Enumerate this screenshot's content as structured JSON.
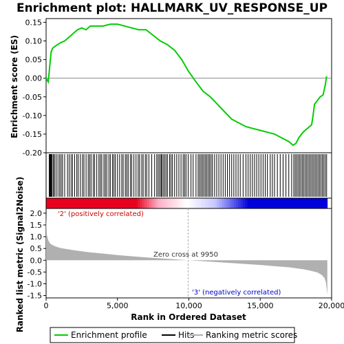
{
  "chart_data": {
    "type": "line",
    "title": "Enrichment plot: HALLMARK_UV_RESPONSE_UP",
    "xlabel": "Rank in Ordered Dataset",
    "ylabel_top": "Enrichment score (ES)",
    "ylabel_bottom": "Ranked list metric (Signal2Noise)",
    "xlim": [
      0,
      20000
    ],
    "x_ticks": [
      0,
      5000,
      10000,
      15000,
      20000
    ],
    "x_tick_labels": [
      "0",
      "5,000",
      "10,000",
      "15,000",
      "20,000"
    ],
    "es_ylim": [
      -0.2,
      0.16
    ],
    "es_ticks": [
      0.15,
      0.1,
      0.05,
      0.0,
      -0.05,
      -0.1,
      -0.15,
      -0.2
    ],
    "es_tick_labels": [
      "0.15",
      "0.10",
      "0.05",
      "0.00",
      "-0.05",
      "-0.10",
      "-0.15",
      "-0.20"
    ],
    "metric_ylim": [
      -1.6,
      2.2
    ],
    "metric_ticks": [
      2.0,
      1.5,
      1.0,
      0.5,
      0.0,
      -0.5,
      -1.0,
      -1.5
    ],
    "metric_tick_labels": [
      "2.0",
      "1.5",
      "1.0",
      "0.5",
      "0.0",
      "-0.5",
      "-1.0",
      "-1.5"
    ],
    "n_genes": 19700,
    "zero_cross": 9950,
    "zero_cross_label": "Zero cross at 9950",
    "pos_label": "'2' (positively correlated)",
    "neg_label": "'3' (negatively correlated)",
    "es_curve": {
      "x": [
        0,
        150,
        250,
        350,
        450,
        600,
        800,
        1000,
        1300,
        1600,
        1900,
        2200,
        2500,
        2800,
        3100,
        3500,
        4000,
        4500,
        5000,
        5500,
        6000,
        6500,
        7000,
        7500,
        8000,
        8500,
        9000,
        9500,
        9950,
        10500,
        11000,
        11500,
        12000,
        12500,
        13000,
        13500,
        14000,
        14500,
        15000,
        15500,
        16000,
        16500,
        17000,
        17300,
        17500,
        17700,
        18000,
        18300,
        18600,
        18700,
        18800,
        19000,
        19200,
        19400,
        19550,
        19650
      ],
      "y": [
        0.0,
        -0.01,
        0.03,
        0.07,
        0.08,
        0.085,
        0.09,
        0.095,
        0.1,
        0.11,
        0.12,
        0.13,
        0.135,
        0.13,
        0.14,
        0.14,
        0.14,
        0.145,
        0.145,
        0.14,
        0.135,
        0.13,
        0.13,
        0.115,
        0.1,
        0.09,
        0.075,
        0.05,
        0.02,
        -0.01,
        -0.035,
        -0.05,
        -0.07,
        -0.09,
        -0.11,
        -0.12,
        -0.13,
        -0.135,
        -0.14,
        -0.145,
        -0.15,
        -0.16,
        -0.17,
        -0.18,
        -0.175,
        -0.16,
        -0.145,
        -0.135,
        -0.125,
        -0.1,
        -0.07,
        -0.06,
        -0.05,
        -0.045,
        -0.02,
        0.005
      ]
    },
    "metric_curve": {
      "x": [
        0,
        50,
        150,
        300,
        600,
        1000,
        2000,
        3000,
        4000,
        5000,
        6000,
        7000,
        8000,
        9000,
        9950,
        11000,
        12000,
        13000,
        14000,
        15000,
        16000,
        17000,
        17500,
        18000,
        18500,
        19000,
        19300,
        19500,
        19600,
        19700
      ],
      "y": [
        1.9,
        1.1,
        0.85,
        0.7,
        0.6,
        0.52,
        0.42,
        0.34,
        0.28,
        0.22,
        0.17,
        0.12,
        0.08,
        0.04,
        0.0,
        -0.04,
        -0.08,
        -0.12,
        -0.16,
        -0.2,
        -0.25,
        -0.3,
        -0.34,
        -0.38,
        -0.44,
        -0.52,
        -0.62,
        -0.75,
        -0.95,
        -1.45
      ]
    },
    "hits": [
      220,
      260,
      300,
      330,
      380,
      420,
      520,
      580,
      700,
      830,
      950,
      1050,
      1150,
      1300,
      1500,
      1620,
      1750,
      1850,
      2000,
      2150,
      2250,
      2400,
      2550,
      2650,
      2800,
      2950,
      3050,
      3150,
      3300,
      3400,
      3550,
      3700,
      3800,
      3900,
      4050,
      4150,
      4250,
      4400,
      4500,
      4650,
      4750,
      4850,
      5000,
      5150,
      5300,
      5400,
      5550,
      5650,
      5750,
      5900,
      6000,
      6150,
      6300,
      6450,
      6550,
      6700,
      6800,
      6950,
      7050,
      7200,
      7400,
      7600,
      7750,
      7850,
      7950,
      8050,
      8100,
      8200,
      8300,
      8400,
      8500,
      8650,
      8750,
      8850,
      9000,
      9150,
      9300,
      9450,
      9600,
      9700,
      9800,
      9950,
      10150,
      10300,
      10500,
      10650,
      10750,
      10850,
      10950,
      11050,
      11150,
      11250,
      11350,
      11450,
      11550,
      11650,
      11800,
      11950,
      12100,
      12250,
      12400,
      12550,
      12700,
      12850,
      13000,
      13150,
      13300,
      13450,
      13600,
      13800,
      14000,
      14150,
      14300,
      14450,
      14600,
      14750,
      14900,
      15050,
      15200,
      15350,
      15500,
      15700,
      15850,
      16000,
      16200,
      16400,
      16600,
      16800,
      17000,
      17200,
      17350,
      17450,
      17550,
      17650,
      17750,
      17850,
      17950,
      18050,
      18150,
      18250,
      18350,
      18450,
      18550,
      18650,
      18750,
      18850,
      18950,
      19050,
      19150,
      19250,
      19350,
      19450,
      19550,
      19650
    ],
    "colors": {
      "es_line": "#00cc00",
      "hit_line": "#000000",
      "metric_fill": "#b0b0b0",
      "zero_cross_line": "#aaaaaa",
      "pos_text": "#cc0000",
      "neg_text": "#0000cc",
      "bar_red": "#e8001e",
      "bar_pink": "#ffb0c8",
      "bar_white": "#ffffff",
      "bar_lavender": "#c8c8ff",
      "bar_blue": "#0000dd"
    },
    "legend": [
      {
        "label": "Enrichment profile",
        "style": "green-line"
      },
      {
        "label": "Hits",
        "style": "black-line"
      },
      {
        "label": "Ranking metric scores",
        "style": "gray-line"
      }
    ]
  }
}
